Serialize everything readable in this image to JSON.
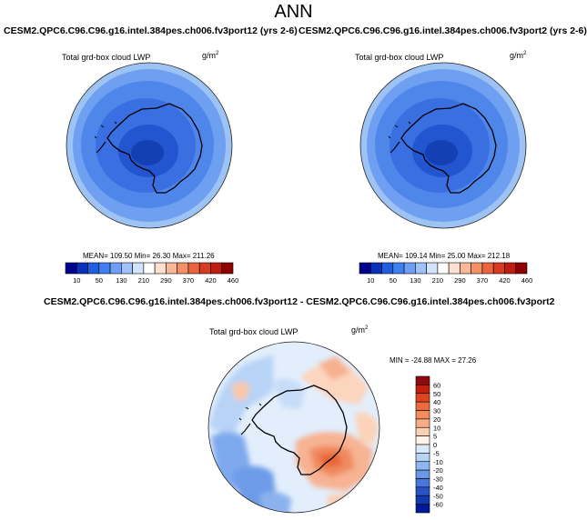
{
  "title": "ANN",
  "panels": [
    {
      "case_title": "CESM2.QPC6.C96.C96.g16.intel.384pes.ch006.fv3port12 (yrs 2-6)",
      "var_title": "Total grd-box cloud LWP",
      "units": "g/m",
      "units_exp": "2",
      "stats": "MEAN= 109.50   Min=   26.30   Max= 211.26"
    },
    {
      "case_title": "CESM2.QPC6.C96.C96.g16.intel.384pes.ch006.fv3port2 (yrs 2-6)",
      "var_title": "Total grd-box cloud LWP",
      "units": "g/m",
      "units_exp": "2",
      "stats": "MEAN= 109.14   Min=   25.00   Max= 212.18"
    }
  ],
  "diff_panel": {
    "title": "CESM2.QPC6.C96.C96.g16.intel.384pes.ch006.fv3port12 - CESM2.QPC6.C96.C96.g16.intel.384pes.ch006.fv3port2",
    "var_title": "Total grd-box cloud LWP",
    "units": "g/m",
    "units_exp": "2",
    "stats": "MIN = -24.88 MAX =  27.26"
  },
  "colorbar_abs": {
    "ticks": [
      "10",
      "50",
      "130",
      "210",
      "290",
      "370",
      "420",
      "460"
    ],
    "colors": [
      "#00008f",
      "#0a2fb8",
      "#1f5fdf",
      "#3f7fef",
      "#6f9ff5",
      "#9fc2fa",
      "#d2e4fc",
      "#ffffff",
      "#fde0cf",
      "#f9b898",
      "#f48f66",
      "#ea6440",
      "#d93b22",
      "#c01c10",
      "#8f0000"
    ]
  },
  "colorbar_diff": {
    "ticks": [
      "60",
      "50",
      "40",
      "30",
      "20",
      "10",
      "5",
      "0",
      "-5",
      "-10",
      "-20",
      "-30",
      "-40",
      "-50",
      "-60"
    ],
    "colors_top_to_bottom": [
      "#8f0a0a",
      "#c2200f",
      "#e0451d",
      "#ee6b3c",
      "#f58c5e",
      "#f9ad84",
      "#fcd0b3",
      "#fff3ea",
      "#dbeafb",
      "#b7d4f7",
      "#8fb6f0",
      "#6b97e6",
      "#4a77da",
      "#2952c4",
      "#103aad",
      "#00199a"
    ]
  }
}
